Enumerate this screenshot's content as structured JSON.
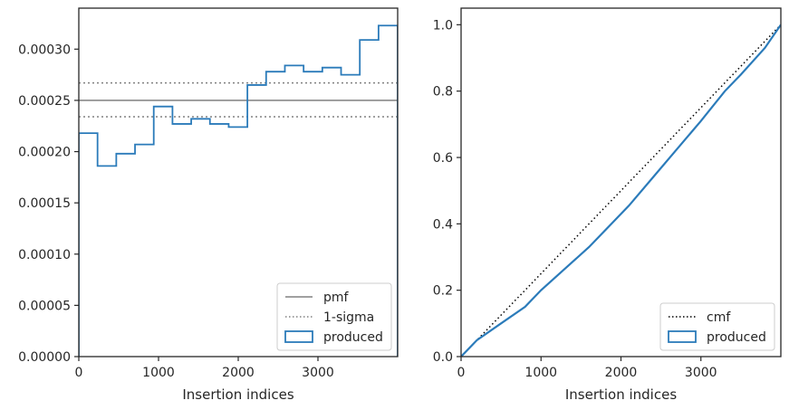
{
  "chart_data": [
    {
      "type": "step",
      "xlabel": "Insertion indices",
      "ylabel": "",
      "xlim": [
        0,
        4000
      ],
      "ylim": [
        0,
        0.00034
      ],
      "xticks": [
        0,
        1000,
        2000,
        3000
      ],
      "xtick_labels": [
        "0",
        "1000",
        "2000",
        "3000"
      ],
      "yticks": [
        0,
        5e-05,
        0.0001,
        0.00015,
        0.0002,
        0.00025,
        0.0003
      ],
      "ytick_labels": [
        "0.00000",
        "0.00005",
        "0.00010",
        "0.00015",
        "0.00020",
        "0.00025",
        "0.00030"
      ],
      "grid": false,
      "legend_position": "lower-right",
      "reference_lines": [
        {
          "name": "pmf",
          "y": 0.00025,
          "style": "solid",
          "color": "#808080"
        },
        {
          "name": "1-sigma",
          "y": 0.000267,
          "style": "dotted",
          "color": "#808080"
        },
        {
          "name": "1-sigma",
          "y": 0.000234,
          "style": "dotted",
          "color": "#808080"
        }
      ],
      "histogram": {
        "name": "produced",
        "color": "#2b7bba",
        "bin_edges": [
          0,
          235,
          470,
          705,
          940,
          1175,
          1410,
          1645,
          1880,
          2115,
          2350,
          2585,
          2820,
          3055,
          3290,
          3525,
          3760,
          4000
        ],
        "values": [
          0.000218,
          0.000186,
          0.000198,
          0.000207,
          0.000244,
          0.000227,
          0.000232,
          0.000227,
          0.000224,
          0.000265,
          0.000278,
          0.000284,
          0.000278,
          0.000282,
          0.000275,
          0.000309,
          0.000323
        ]
      },
      "legend": [
        {
          "label": "pmf",
          "kind": "line-solid",
          "color": "#808080"
        },
        {
          "label": "1-sigma",
          "kind": "line-dotted",
          "color": "#808080"
        },
        {
          "label": "produced",
          "kind": "patch",
          "color": "#2b7bba"
        }
      ]
    },
    {
      "type": "line",
      "xlabel": "Insertion indices",
      "ylabel": "",
      "xlim": [
        0,
        4000
      ],
      "ylim": [
        0,
        1.05
      ],
      "xticks": [
        0,
        1000,
        2000,
        3000
      ],
      "xtick_labels": [
        "0",
        "1000",
        "2000",
        "3000"
      ],
      "yticks": [
        0,
        0.2,
        0.4,
        0.6,
        0.8,
        1.0
      ],
      "ytick_labels": [
        "0.0",
        "0.2",
        "0.4",
        "0.6",
        "0.8",
        "1.0"
      ],
      "grid": false,
      "legend_position": "lower-right",
      "series": [
        {
          "name": "cmf",
          "style": "dotted",
          "color": "#000000",
          "x": [
            0,
            4000
          ],
          "y": [
            0,
            1.0
          ]
        },
        {
          "name": "produced",
          "style": "solid",
          "color": "#2b7bba",
          "x": [
            0,
            200,
            500,
            800,
            1000,
            1300,
            1600,
            1900,
            2100,
            2400,
            2700,
            3000,
            3300,
            3500,
            3800,
            4000
          ],
          "y": [
            0,
            0.05,
            0.1,
            0.15,
            0.2,
            0.265,
            0.33,
            0.405,
            0.455,
            0.54,
            0.625,
            0.71,
            0.8,
            0.85,
            0.93,
            1.0
          ]
        }
      ],
      "legend": [
        {
          "label": "cmf",
          "kind": "line-dotted",
          "color": "#000000"
        },
        {
          "label": "produced",
          "kind": "patch",
          "color": "#2b7bba"
        }
      ]
    }
  ]
}
